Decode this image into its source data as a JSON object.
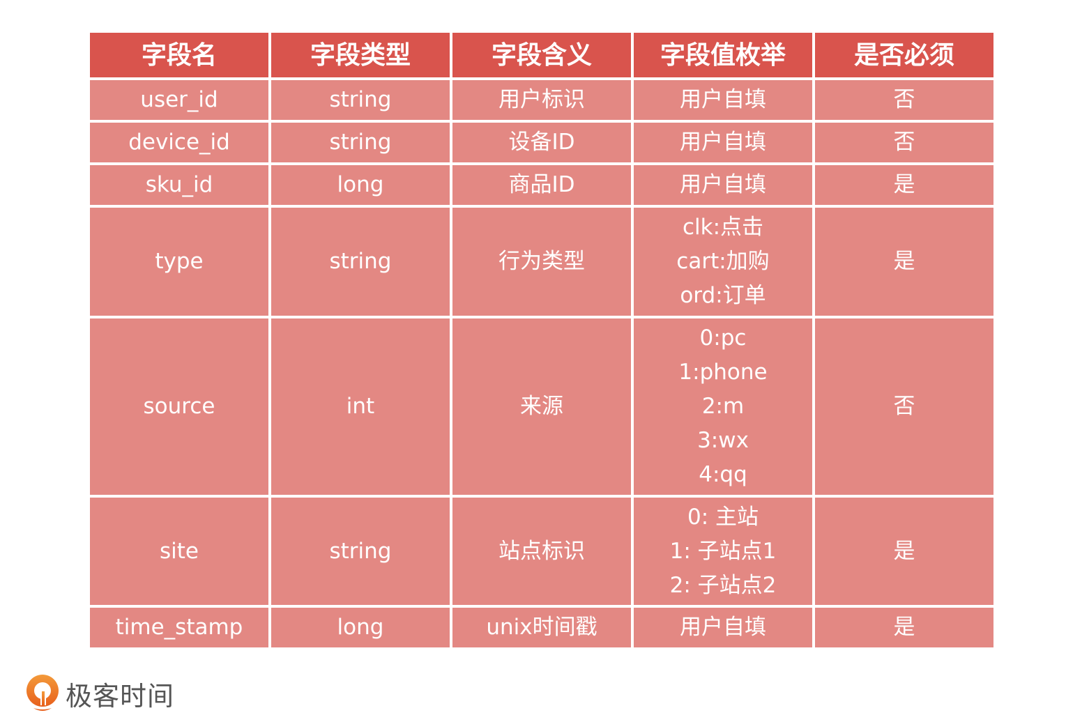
{
  "headers": [
    "字段名",
    "字段类型",
    "字段含义",
    "字段值枚举",
    "是否必须"
  ],
  "rows": [
    {
      "name": "user_id",
      "type": "string",
      "meaning": "用户标识",
      "values": [
        "用户自填"
      ],
      "required": "否"
    },
    {
      "name": "device_id",
      "type": "string",
      "meaning": "设备ID",
      "values": [
        "用户自填"
      ],
      "required": "否"
    },
    {
      "name": "sku_id",
      "type": "long",
      "meaning": "商品ID",
      "values": [
        "用户自填"
      ],
      "required": "是"
    },
    {
      "name": "type",
      "type": "string",
      "meaning": "行为类型",
      "values": [
        "clk:点击",
        "cart:加购",
        "ord:订单"
      ],
      "required": "是"
    },
    {
      "name": "source",
      "type": "int",
      "meaning": "来源",
      "values": [
        "0:pc",
        "1:phone",
        "2:m",
        "3:wx",
        "4:qq"
      ],
      "required": "否"
    },
    {
      "name": "site",
      "type": "string",
      "meaning": "站点标识",
      "values": [
        "0: 主站",
        "1: 子站点1",
        "2: 子站点2"
      ],
      "required": "是"
    },
    {
      "name": "time_stamp",
      "type": "long",
      "meaning": "unix时间戳",
      "values": [
        "用户自填"
      ],
      "required": "是"
    }
  ],
  "colors": {
    "header": "#d9544d",
    "row": "#e38883",
    "logo": "#ee7a2a"
  },
  "logo": {
    "text": "极客时间",
    "icon": "geektime-logo-icon"
  }
}
